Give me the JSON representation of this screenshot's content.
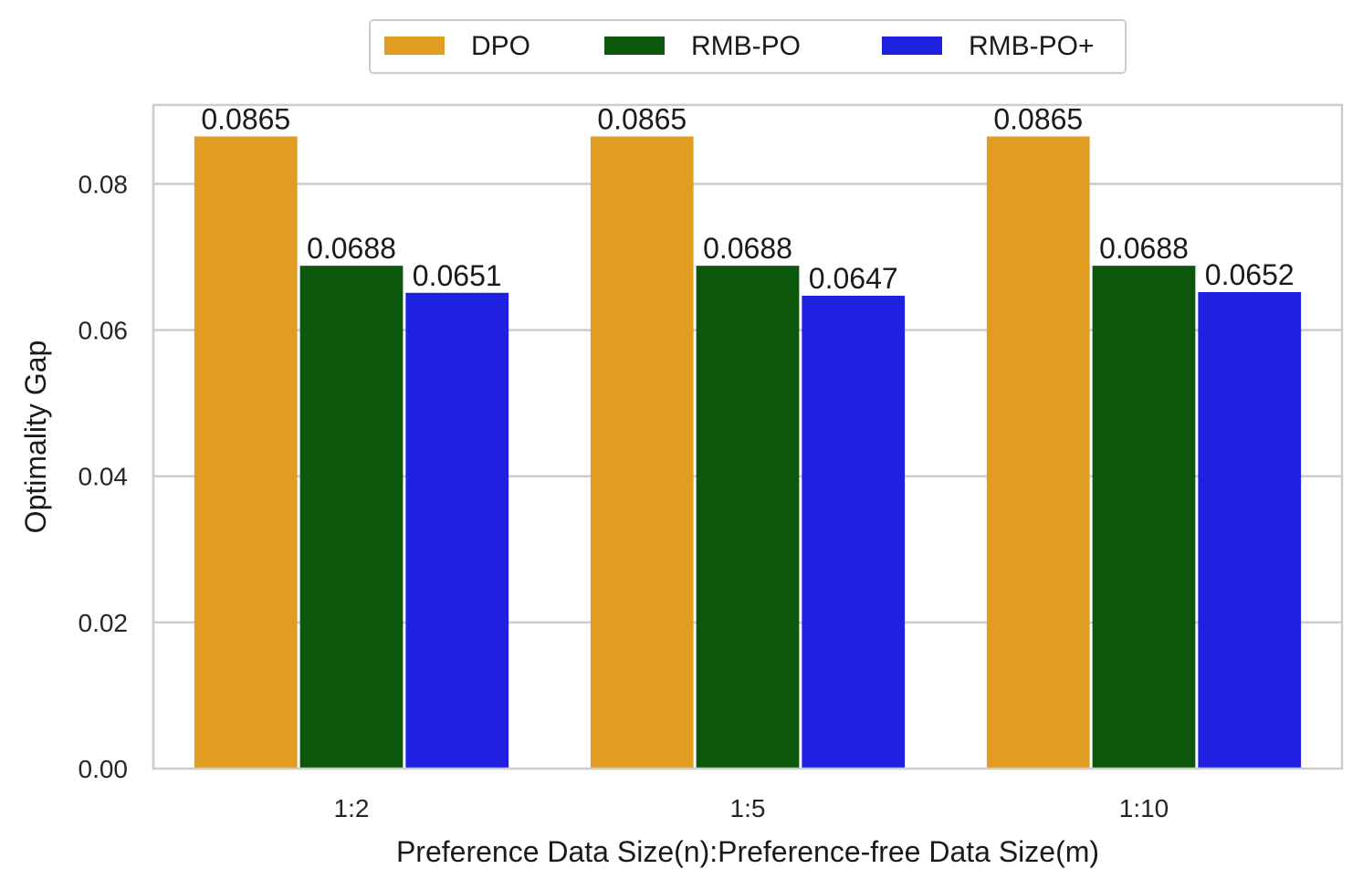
{
  "chart_data": {
    "type": "bar",
    "title": "",
    "xlabel": "Preference Data Size(n):Preference-free Data Size(m)",
    "ylabel": "Optimality Gap",
    "categories": [
      "1:2",
      "1:5",
      "1:10"
    ],
    "series": [
      {
        "name": "DPO",
        "color": "#E09D22",
        "values": [
          0.0865,
          0.0865,
          0.0865
        ],
        "labels": [
          "0.0865",
          "0.0865",
          "0.0865"
        ]
      },
      {
        "name": "RMB-PO",
        "color": "#0C570C",
        "values": [
          0.0688,
          0.0688,
          0.0688
        ],
        "labels": [
          "0.0688",
          "0.0688",
          "0.0688"
        ]
      },
      {
        "name": "RMB-PO+",
        "color": "#2020E0",
        "values": [
          0.0651,
          0.0647,
          0.0652
        ],
        "labels": [
          "0.0651",
          "0.0647",
          "0.0652"
        ]
      }
    ],
    "ylim": [
      0,
      0.0908
    ],
    "yticks": [
      0.0,
      0.02,
      0.04,
      0.06,
      0.08
    ],
    "ytick_labels": [
      "0.00",
      "0.02",
      "0.04",
      "0.06",
      "0.08"
    ],
    "grid": "horizontal",
    "legend_position": "top-center"
  }
}
